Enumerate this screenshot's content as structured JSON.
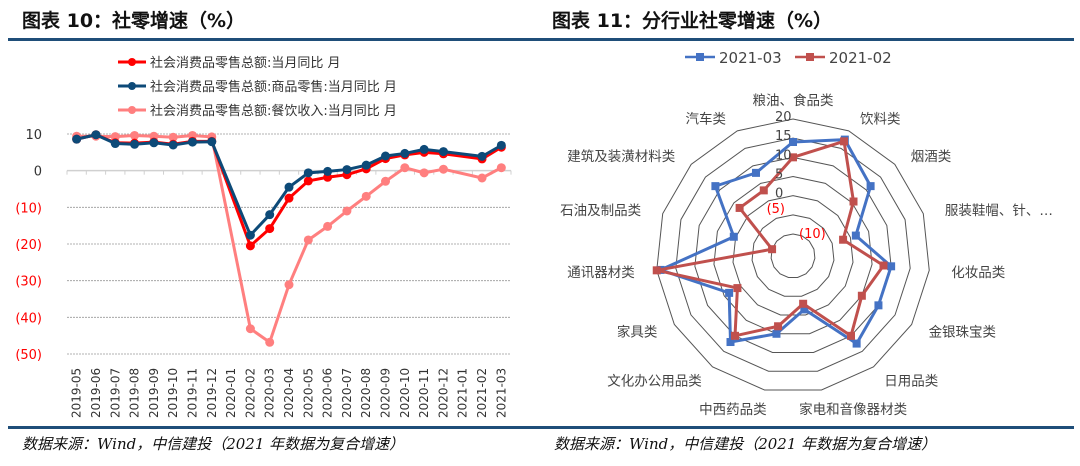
{
  "panels": [
    {
      "title": "图表 10：社零增速（%）",
      "source": "数据来源：Wind，中信建投（2021 年数据为复合增速）"
    },
    {
      "title": "图表 11：分行业社零增速（%）",
      "source": "数据来源：Wind，中信建投（2021 年数据为复合增速）"
    }
  ],
  "chart_data": [
    {
      "type": "line",
      "title": "社零增速（%）",
      "xlabel": "",
      "ylabel": "",
      "ylim": [
        -50,
        10
      ],
      "yticks": [
        10,
        0,
        -10,
        -20,
        -30,
        -40,
        -50
      ],
      "ytick_labels": [
        "10",
        "0",
        "(10)",
        "(20)",
        "(30)",
        "(40)",
        "(50)"
      ],
      "grid": true,
      "legend_position": "top-center",
      "categories": [
        "2019-05",
        "2019-06",
        "2019-07",
        "2019-08",
        "2019-09",
        "2019-10",
        "2019-11",
        "2019-12",
        "2020-01",
        "2020-02",
        "2020-03",
        "2020-04",
        "2020-05",
        "2020-06",
        "2020-07",
        "2020-08",
        "2020-09",
        "2020-10",
        "2020-11",
        "2020-12",
        "2021-01",
        "2021-02",
        "2021-03"
      ],
      "series": [
        {
          "name": "社会消费品零售总额:当月同比 月",
          "color": "#ff0000",
          "values": [
            8.6,
            9.8,
            7.6,
            7.5,
            7.8,
            7.2,
            8.0,
            8.0,
            null,
            -20.5,
            -15.8,
            -7.5,
            -2.8,
            -1.8,
            -1.1,
            0.5,
            3.3,
            4.3,
            5.0,
            4.6,
            null,
            3.2,
            6.4
          ]
        },
        {
          "name": "社会消费品零售总额:商品零售:当月同比 月",
          "color": "#0d4a78",
          "values": [
            8.6,
            9.8,
            7.4,
            7.2,
            7.6,
            7.0,
            7.8,
            7.9,
            null,
            -17.6,
            -12.0,
            -4.5,
            -0.6,
            -0.2,
            0.3,
            1.5,
            4.0,
            4.7,
            5.8,
            5.2,
            null,
            3.9,
            6.9
          ]
        },
        {
          "name": "社会消费品零售总额:餐饮收入:当月同比 月",
          "color": "#ff7f7f",
          "values": [
            9.4,
            9.4,
            9.3,
            9.6,
            9.4,
            9.1,
            9.6,
            9.2,
            null,
            -43.1,
            -46.8,
            -31.1,
            -18.9,
            -15.2,
            -11.0,
            -7.0,
            -2.9,
            0.8,
            -0.6,
            0.4,
            null,
            -2.0,
            0.8
          ]
        }
      ]
    },
    {
      "type": "radar",
      "title": "分行业社零增速（%）",
      "rlim": [
        -10,
        20
      ],
      "rticks": [
        20,
        15,
        10,
        5,
        0,
        -5,
        -10
      ],
      "rtick_labels": [
        "20",
        "15",
        "10",
        "5",
        "0",
        "(5)",
        "(10)"
      ],
      "legend_position": "top-center",
      "categories": [
        "粮油、食品类",
        "饮料类",
        "烟酒类",
        "服装鞋帽、针、…",
        "化妆品类",
        "金银珠宝类",
        "日用品类",
        "家电和音像器材类",
        "中西药品类",
        "文化办公用品类",
        "家具类",
        "通讯器材类",
        "石油及制品类",
        "建筑及装潢材料类",
        "汽车类"
      ],
      "series": [
        {
          "name": "2021-03",
          "color": "#4472c4",
          "values": [
            14.0,
            17.5,
            11.5,
            1.5,
            10.0,
            10.0,
            12.5,
            -1.5,
            5.0,
            12.0,
            3.5,
            19.0,
            0.5,
            11.5,
            8.0
          ]
        },
        {
          "name": "2021-02",
          "color": "#c0504d",
          "values": [
            10.0,
            17.0,
            5.5,
            -2.0,
            8.0,
            5.0,
            10.0,
            -3.0,
            3.0,
            10.0,
            1.0,
            20.0,
            -10.0,
            3.0,
            3.0
          ]
        }
      ]
    }
  ]
}
